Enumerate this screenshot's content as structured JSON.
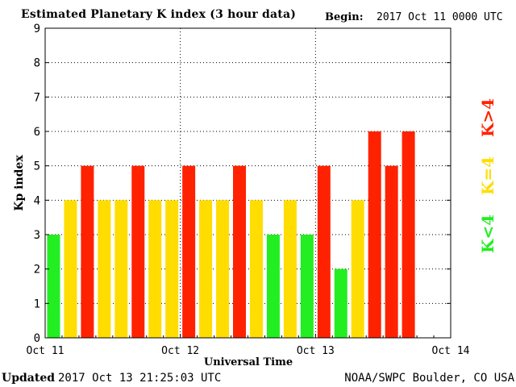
{
  "header": {
    "title": "Estimated Planetary K index (3 hour data)",
    "begin_label": "Begin:",
    "begin_value": "2017 Oct 11 0000 UTC"
  },
  "footer": {
    "updated_label": "Updated",
    "updated_value": "2017 Oct 13 21:25:03 UTC",
    "source": "NOAA/SWPC Boulder, CO USA"
  },
  "legend": {
    "low": {
      "text": "K<4",
      "color": "#22ee22"
    },
    "mid": {
      "text": "K=4",
      "color": "#ffdd00"
    },
    "high": {
      "text": "K>4",
      "color": "#ff2200"
    }
  },
  "chart_data": {
    "type": "bar",
    "title": "Estimated Planetary K index (3 hour data)",
    "xlabel": "Universal Time",
    "ylabel": "Kp index",
    "ylim": [
      0,
      9
    ],
    "yticks": [
      "0",
      "1",
      "2",
      "3",
      "4",
      "5",
      "6",
      "7",
      "8",
      "9"
    ],
    "xticks": [
      "Oct 11",
      "Oct 12",
      "Oct 13",
      "Oct 14"
    ],
    "interval_hours": 3,
    "values": [
      3,
      4,
      5,
      4,
      4,
      5,
      4,
      4,
      5,
      4,
      4,
      5,
      4,
      3,
      4,
      3,
      5,
      2,
      4,
      6,
      5,
      6
    ],
    "color_rule": {
      "below_4": "#22ee22",
      "equal_4": "#ffdd00",
      "above_4": "#ff2200"
    },
    "grid": true
  }
}
